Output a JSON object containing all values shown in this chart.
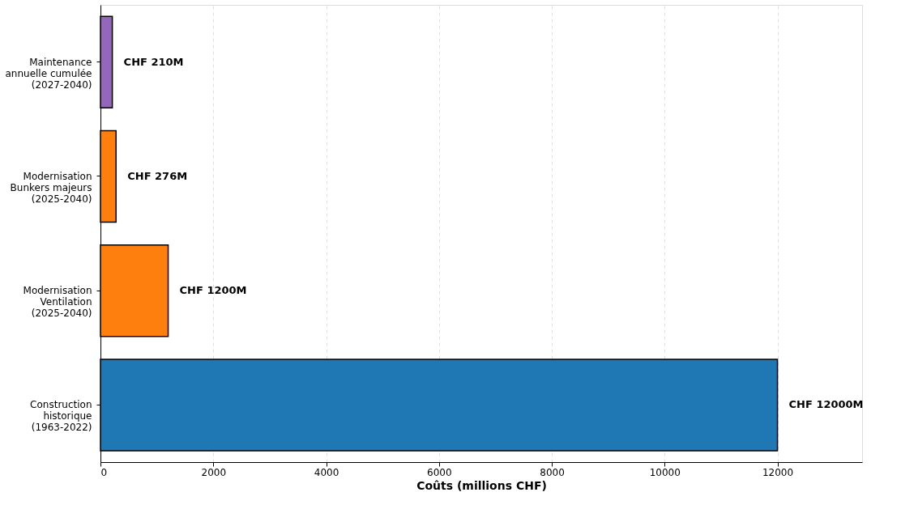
{
  "chart_data": {
    "type": "bar",
    "orientation": "horizontal",
    "categories": [
      "Maintenance\nannuelle cumulée\n(2027-2040)",
      "Modernisation\nBunkers majeurs\n(2025-2040)",
      "Modernisation\nVentilation\n(2025-2040)",
      "Construction\nhistorique\n(1963-2022)"
    ],
    "values": [
      210,
      276,
      1200,
      12000
    ],
    "colors": [
      "#9467bd",
      "#ff7f0e",
      "#ff7f0e",
      "#1f77b4"
    ],
    "value_labels": [
      "CHF 210M",
      "CHF 276M",
      "CHF 1200M",
      "CHF 12000M"
    ],
    "xlabel": "Coûts (millions CHF)",
    "xlim": [
      0,
      13500
    ],
    "xticks": [
      0,
      2000,
      4000,
      6000,
      8000,
      10000,
      12000
    ],
    "grid": "x"
  }
}
